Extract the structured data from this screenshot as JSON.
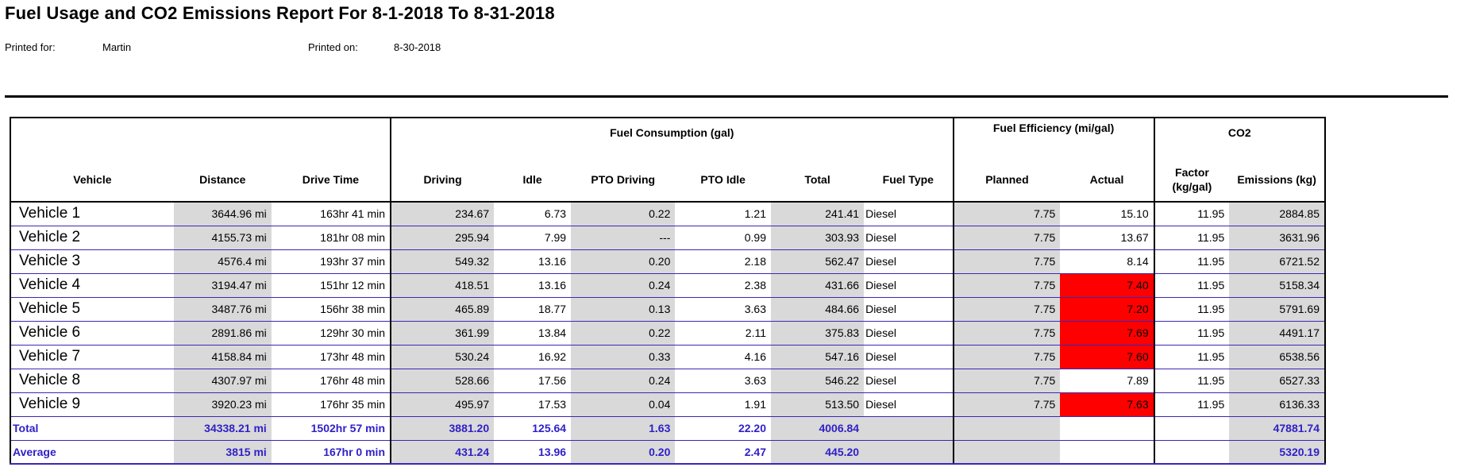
{
  "report": {
    "title": "Fuel Usage and CO2 Emissions Report For 8-1-2018 To 8-31-2018",
    "printed_for_label": "Printed for:",
    "printed_for_value": "Martin",
    "printed_on_label": "Printed on:",
    "printed_on_value": "8-30-2018"
  },
  "headers": {
    "group_fuel_consumption": "Fuel Consumption (gal)",
    "group_fuel_efficiency": "Fuel Efficiency (mi/gal)",
    "group_co2": "CO2",
    "vehicle": "Vehicle",
    "distance": "Distance",
    "drive_time": "Drive Time",
    "driving": "Driving",
    "idle": "Idle",
    "pto_driving": "PTO Driving",
    "pto_idle": "PTO Idle",
    "total": "Total",
    "fuel_type": "Fuel Type",
    "planned": "Planned",
    "actual": "Actual",
    "factor": "Factor (kg/gal)",
    "emissions": "Emissions (kg)"
  },
  "rows": [
    {
      "vehicle": "Vehicle 1",
      "distance": "3644.96 mi",
      "drive_time": "163hr 41 min",
      "driving": "234.67",
      "idle": "6.73",
      "pto_driving": "0.22",
      "pto_idle": "1.21",
      "total": "241.41",
      "fuel_type": "Diesel",
      "planned": "7.75",
      "actual": "15.10",
      "actual_below_plan": false,
      "factor": "11.95",
      "emissions": "2884.85"
    },
    {
      "vehicle": "Vehicle 2",
      "distance": "4155.73 mi",
      "drive_time": "181hr 08 min",
      "driving": "295.94",
      "idle": "7.99",
      "pto_driving": "---",
      "pto_idle": "0.99",
      "total": "303.93",
      "fuel_type": "Diesel",
      "planned": "7.75",
      "actual": "13.67",
      "actual_below_plan": false,
      "factor": "11.95",
      "emissions": "3631.96"
    },
    {
      "vehicle": "Vehicle 3",
      "distance": "4576.4 mi",
      "drive_time": "193hr 37 min",
      "driving": "549.32",
      "idle": "13.16",
      "pto_driving": "0.20",
      "pto_idle": "2.18",
      "total": "562.47",
      "fuel_type": "Diesel",
      "planned": "7.75",
      "actual": "8.14",
      "actual_below_plan": false,
      "factor": "11.95",
      "emissions": "6721.52"
    },
    {
      "vehicle": "Vehicle 4",
      "distance": "3194.47 mi",
      "drive_time": "151hr 12 min",
      "driving": "418.51",
      "idle": "13.16",
      "pto_driving": "0.24",
      "pto_idle": "2.38",
      "total": "431.66",
      "fuel_type": "Diesel",
      "planned": "7.75",
      "actual": "7.40",
      "actual_below_plan": true,
      "factor": "11.95",
      "emissions": "5158.34"
    },
    {
      "vehicle": "Vehicle 5",
      "distance": "3487.76 mi",
      "drive_time": "156hr 38 min",
      "driving": "465.89",
      "idle": "18.77",
      "pto_driving": "0.13",
      "pto_idle": "3.63",
      "total": "484.66",
      "fuel_type": "Diesel",
      "planned": "7.75",
      "actual": "7.20",
      "actual_below_plan": true,
      "factor": "11.95",
      "emissions": "5791.69"
    },
    {
      "vehicle": "Vehicle 6",
      "distance": "2891.86 mi",
      "drive_time": "129hr 30 min",
      "driving": "361.99",
      "idle": "13.84",
      "pto_driving": "0.22",
      "pto_idle": "2.11",
      "total": "375.83",
      "fuel_type": "Diesel",
      "planned": "7.75",
      "actual": "7.69",
      "actual_below_plan": true,
      "factor": "11.95",
      "emissions": "4491.17"
    },
    {
      "vehicle": "Vehicle 7",
      "distance": "4158.84 mi",
      "drive_time": "173hr 48 min",
      "driving": "530.24",
      "idle": "16.92",
      "pto_driving": "0.33",
      "pto_idle": "4.16",
      "total": "547.16",
      "fuel_type": "Diesel",
      "planned": "7.75",
      "actual": "7.60",
      "actual_below_plan": true,
      "factor": "11.95",
      "emissions": "6538.56"
    },
    {
      "vehicle": "Vehicle 8",
      "distance": "4307.97 mi",
      "drive_time": "176hr 48 min",
      "driving": "528.66",
      "idle": "17.56",
      "pto_driving": "0.24",
      "pto_idle": "3.63",
      "total": "546.22",
      "fuel_type": "Diesel",
      "planned": "7.75",
      "actual": "7.89",
      "actual_below_plan": false,
      "factor": "11.95",
      "emissions": "6527.33"
    },
    {
      "vehicle": "Vehicle 9",
      "distance": "3920.23 mi",
      "drive_time": "176hr 35 min",
      "driving": "495.97",
      "idle": "17.53",
      "pto_driving": "0.04",
      "pto_idle": "1.91",
      "total": "513.50",
      "fuel_type": "Diesel",
      "planned": "7.75",
      "actual": "7.63",
      "actual_below_plan": true,
      "factor": "11.95",
      "emissions": "6136.33"
    }
  ],
  "summary": [
    {
      "label": "Total",
      "distance": "34338.21 mi",
      "drive_time": "1502hr 57 min",
      "driving": "3881.20",
      "idle": "125.64",
      "pto_driving": "1.63",
      "pto_idle": "22.20",
      "total": "4006.84",
      "emissions": "47881.74"
    },
    {
      "label": "Average",
      "distance": "3815 mi",
      "drive_time": "167hr 0 min",
      "driving": "431.24",
      "idle": "13.96",
      "pto_driving": "0.20",
      "pto_idle": "2.47",
      "total": "445.20",
      "emissions": "5320.19"
    }
  ],
  "colors": {
    "highlight_below_plan": "#ff0000",
    "summary_text": "#2f1fc8",
    "row_rule": "#3c28b4",
    "cell_shade": "#d9d9d9"
  }
}
